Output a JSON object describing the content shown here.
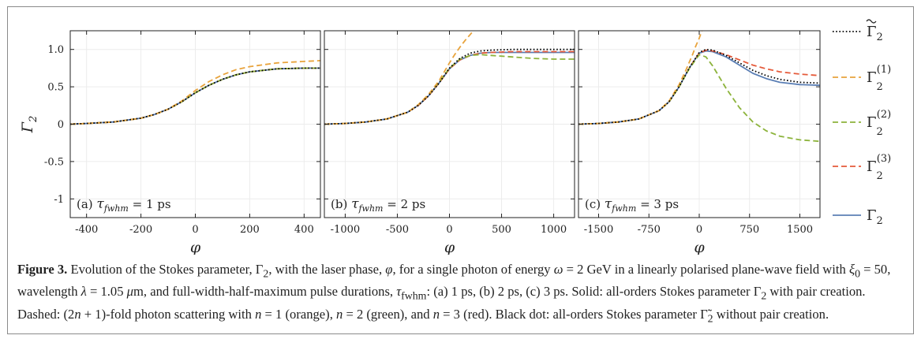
{
  "chart_data": [
    {
      "type": "line",
      "panel": "(a)",
      "annotation": "(a)  τfwhm = 1 ps",
      "annotation_tau": "τ",
      "annotation_sub": "fwhm",
      "annotation_rest": " = 1 ps",
      "xlabel": "φ",
      "ylabel": "Γ2",
      "xlim": [
        -460,
        460
      ],
      "ylim": [
        -1.25,
        1.25
      ],
      "xticks": [
        -400,
        -200,
        0,
        200,
        400
      ],
      "xtick_labels": [
        "-400",
        "-200",
        "0",
        "200",
        "400"
      ],
      "yticks": [
        1.0,
        0.5,
        0,
        -0.5,
        -1
      ],
      "ytick_labels": [
        "1.0",
        "0.5",
        "0",
        "-0.5",
        "-1"
      ],
      "grid": true,
      "series": [
        {
          "name": "Γ2~",
          "style": "dotted",
          "color": "#000000",
          "x": [
            -460,
            -400,
            -300,
            -200,
            -150,
            -100,
            -50,
            0,
            50,
            100,
            150,
            200,
            300,
            400,
            460
          ],
          "y": [
            0.0,
            0.01,
            0.03,
            0.08,
            0.13,
            0.2,
            0.3,
            0.42,
            0.52,
            0.6,
            0.66,
            0.7,
            0.74,
            0.75,
            0.75
          ]
        },
        {
          "name": "Γ2(1)",
          "style": "dashed",
          "color": "#e8a33c",
          "x": [
            -460,
            -400,
            -300,
            -200,
            -150,
            -100,
            -50,
            0,
            50,
            100,
            150,
            200,
            300,
            400,
            460
          ],
          "y": [
            0.0,
            0.01,
            0.03,
            0.08,
            0.13,
            0.2,
            0.31,
            0.45,
            0.57,
            0.66,
            0.73,
            0.77,
            0.82,
            0.84,
            0.85
          ]
        },
        {
          "name": "Γ2(2)",
          "style": "dashed",
          "color": "#8cb33b",
          "x": [
            -460,
            -400,
            -300,
            -200,
            -150,
            -100,
            -50,
            0,
            50,
            100,
            150,
            200,
            300,
            400,
            460
          ],
          "y": [
            0.0,
            0.01,
            0.03,
            0.08,
            0.13,
            0.2,
            0.3,
            0.42,
            0.52,
            0.6,
            0.66,
            0.7,
            0.74,
            0.75,
            0.75
          ]
        },
        {
          "name": "Γ2(3)",
          "style": "dashed",
          "color": "#e55a3a",
          "x": [
            -460,
            -400,
            -300,
            -200,
            -150,
            -100,
            -50,
            0,
            50,
            100,
            150,
            200,
            300,
            400,
            460
          ],
          "y": [
            0.0,
            0.01,
            0.03,
            0.08,
            0.13,
            0.2,
            0.3,
            0.42,
            0.52,
            0.6,
            0.66,
            0.7,
            0.74,
            0.75,
            0.75
          ]
        },
        {
          "name": "Γ2",
          "style": "solid",
          "color": "#5b7fb5",
          "x": [
            -460,
            -400,
            -300,
            -200,
            -150,
            -100,
            -50,
            0,
            50,
            100,
            150,
            200,
            300,
            400,
            460
          ],
          "y": [
            0.0,
            0.01,
            0.03,
            0.08,
            0.13,
            0.2,
            0.3,
            0.42,
            0.52,
            0.6,
            0.66,
            0.7,
            0.74,
            0.75,
            0.75
          ]
        }
      ]
    },
    {
      "type": "line",
      "panel": "(b)",
      "annotation_tau": "τ",
      "annotation_sub": "fwhm",
      "annotation_rest": " = 2 ps",
      "xlabel": "φ",
      "xlim": [
        -1200,
        1200
      ],
      "ylim": [
        -1.25,
        1.25
      ],
      "xticks": [
        -1000,
        -500,
        0,
        500,
        1000
      ],
      "xtick_labels": [
        "-1000",
        "-500",
        "0",
        "500",
        "1000"
      ],
      "grid": true,
      "series": [
        {
          "name": "Γ2~",
          "style": "dotted",
          "color": "#000000",
          "x": [
            -1200,
            -1000,
            -800,
            -600,
            -400,
            -300,
            -200,
            -100,
            0,
            100,
            200,
            300,
            400,
            600,
            800,
            1000,
            1200
          ],
          "y": [
            0.0,
            0.01,
            0.03,
            0.07,
            0.16,
            0.25,
            0.38,
            0.55,
            0.75,
            0.88,
            0.95,
            0.98,
            0.99,
            1.0,
            1.0,
            1.0,
            1.0
          ]
        },
        {
          "name": "Γ2(1)",
          "style": "dashed",
          "color": "#e8a33c",
          "x": [
            -1200,
            -1000,
            -800,
            -600,
            -400,
            -300,
            -200,
            -100,
            0,
            50,
            100,
            150,
            200,
            230
          ],
          "y": [
            0.0,
            0.01,
            0.03,
            0.07,
            0.16,
            0.26,
            0.4,
            0.58,
            0.82,
            0.93,
            1.03,
            1.12,
            1.2,
            1.25
          ]
        },
        {
          "name": "Γ2(2)",
          "style": "dashed",
          "color": "#8cb33b",
          "x": [
            -1200,
            -1000,
            -800,
            -600,
            -400,
            -300,
            -200,
            -100,
            0,
            100,
            200,
            300,
            400,
            600,
            800,
            1000,
            1200
          ],
          "y": [
            0.0,
            0.01,
            0.03,
            0.07,
            0.16,
            0.26,
            0.39,
            0.56,
            0.75,
            0.87,
            0.92,
            0.93,
            0.92,
            0.9,
            0.88,
            0.87,
            0.87
          ]
        },
        {
          "name": "Γ2(3)",
          "style": "dashed",
          "color": "#e55a3a",
          "x": [
            -1200,
            -1000,
            -800,
            -600,
            -400,
            -300,
            -200,
            -100,
            0,
            100,
            200,
            300,
            400,
            600,
            800,
            1000,
            1200
          ],
          "y": [
            0.0,
            0.01,
            0.03,
            0.07,
            0.16,
            0.25,
            0.38,
            0.55,
            0.74,
            0.86,
            0.92,
            0.95,
            0.96,
            0.97,
            0.97,
            0.97,
            0.97
          ]
        },
        {
          "name": "Γ2",
          "style": "solid",
          "color": "#5b7fb5",
          "x": [
            -1200,
            -1000,
            -800,
            -600,
            -400,
            -300,
            -200,
            -100,
            0,
            100,
            200,
            300,
            400,
            600,
            800,
            1000,
            1200
          ],
          "y": [
            0.0,
            0.01,
            0.03,
            0.07,
            0.16,
            0.25,
            0.38,
            0.55,
            0.74,
            0.86,
            0.92,
            0.95,
            0.96,
            0.96,
            0.96,
            0.96,
            0.96
          ]
        }
      ]
    },
    {
      "type": "line",
      "panel": "(c)",
      "annotation_tau": "τ",
      "annotation_sub": "fwhm",
      "annotation_rest": " = 3 ps",
      "xlabel": "φ",
      "xlim": [
        -1800,
        1800
      ],
      "ylim": [
        -1.25,
        1.25
      ],
      "xticks": [
        -1500,
        -750,
        0,
        750,
        1500
      ],
      "xtick_labels": [
        "-1500",
        "-750",
        "0",
        "750",
        "1500"
      ],
      "grid": true,
      "series": [
        {
          "name": "Γ2~",
          "style": "dotted",
          "color": "#000000",
          "x": [
            -1800,
            -1500,
            -1200,
            -900,
            -600,
            -450,
            -300,
            -150,
            0,
            100,
            200,
            400,
            600,
            800,
            1000,
            1200,
            1500,
            1800
          ],
          "y": [
            0.0,
            0.01,
            0.03,
            0.07,
            0.18,
            0.3,
            0.5,
            0.75,
            0.96,
            1.0,
            0.99,
            0.92,
            0.82,
            0.72,
            0.65,
            0.6,
            0.56,
            0.55
          ]
        },
        {
          "name": "Γ2(1)",
          "style": "dashed",
          "color": "#e8a33c",
          "x": [
            -1800,
            -1500,
            -1200,
            -900,
            -600,
            -450,
            -300,
            -200,
            -100,
            -50,
            0,
            20,
            40
          ],
          "y": [
            0.0,
            0.01,
            0.03,
            0.07,
            0.18,
            0.31,
            0.53,
            0.72,
            0.93,
            1.05,
            1.15,
            1.2,
            1.25
          ]
        },
        {
          "name": "Γ2(2)",
          "style": "dashed",
          "color": "#8cb33b",
          "x": [
            -1800,
            -1500,
            -1200,
            -900,
            -600,
            -450,
            -300,
            -150,
            0,
            100,
            200,
            400,
            600,
            800,
            1000,
            1200,
            1500,
            1800
          ],
          "y": [
            0.0,
            0.01,
            0.03,
            0.07,
            0.18,
            0.3,
            0.5,
            0.74,
            0.93,
            0.9,
            0.78,
            0.48,
            0.22,
            0.03,
            -0.09,
            -0.16,
            -0.21,
            -0.23
          ]
        },
        {
          "name": "Γ2(3)",
          "style": "dashed",
          "color": "#e55a3a",
          "x": [
            -1800,
            -1500,
            -1200,
            -900,
            -600,
            -450,
            -300,
            -150,
            0,
            100,
            200,
            400,
            600,
            800,
            1000,
            1200,
            1500,
            1800
          ],
          "y": [
            0.0,
            0.01,
            0.03,
            0.07,
            0.18,
            0.3,
            0.5,
            0.75,
            0.95,
            0.99,
            0.98,
            0.93,
            0.86,
            0.79,
            0.74,
            0.7,
            0.67,
            0.65
          ]
        },
        {
          "name": "Γ2",
          "style": "solid",
          "color": "#5b7fb5",
          "x": [
            -1800,
            -1500,
            -1200,
            -900,
            -600,
            -450,
            -300,
            -150,
            0,
            100,
            200,
            400,
            600,
            800,
            1000,
            1200,
            1500,
            1800
          ],
          "y": [
            0.0,
            0.01,
            0.03,
            0.07,
            0.18,
            0.3,
            0.5,
            0.75,
            0.95,
            0.98,
            0.97,
            0.9,
            0.79,
            0.68,
            0.61,
            0.56,
            0.53,
            0.52
          ]
        }
      ]
    }
  ],
  "legend": [
    {
      "symbol": "Γ",
      "sub": "2",
      "sup": "",
      "tilde": true,
      "style": "dotted",
      "color": "#000000"
    },
    {
      "symbol": "Γ",
      "sub": "2",
      "sup": "(1)",
      "tilde": false,
      "style": "dashed",
      "color": "#e8a33c"
    },
    {
      "symbol": "Γ",
      "sub": "2",
      "sup": "(2)",
      "tilde": false,
      "style": "dashed",
      "color": "#8cb33b"
    },
    {
      "symbol": "Γ",
      "sub": "2",
      "sup": "(3)",
      "tilde": false,
      "style": "dashed",
      "color": "#e55a3a"
    },
    {
      "symbol": "Γ",
      "sub": "2",
      "sup": "",
      "tilde": false,
      "style": "solid",
      "color": "#5b7fb5"
    }
  ],
  "ylabel_symbol": "Γ",
  "ylabel_sub": "2",
  "caption": {
    "label": "Figure 3.",
    "p1": " Evolution of the Stokes parameter, Γ",
    "p1_sub": "2",
    "p2": ", with the laser phase, ",
    "phi": "φ",
    "p3": ", for a single photon of energy ",
    "omega": "ω",
    "p4": " = 2 GeV in a linearly polarised plane-wave field with ",
    "xi": "ξ",
    "xi_sub": "0",
    "p5": " = 50, wavelength ",
    "lambda": "λ",
    "p6": " = 1.05 ",
    "mu": "μ",
    "p7": "m, and full-width-half-maximum pulse durations, ",
    "tau": "τ",
    "tau_sub": "fwhm",
    "p8": ": (a) 1 ps, (b) 2 ps, (c) 3 ps. Solid: all-orders Stokes parameter Γ",
    "p8_sub": "2",
    "p9": " with pair creation. Dashed: (2",
    "n": "n",
    "p10": " + 1)-fold photon scattering with ",
    "p11": " = 1 (orange), ",
    "p12": " = 2 (green), and ",
    "p13": " = 3 (red). Black dot: all-orders Stokes parameter ",
    "gamma_tilde": "Γ̃",
    "gamma_tilde_sub": "2",
    "p14": " without pair creation."
  }
}
